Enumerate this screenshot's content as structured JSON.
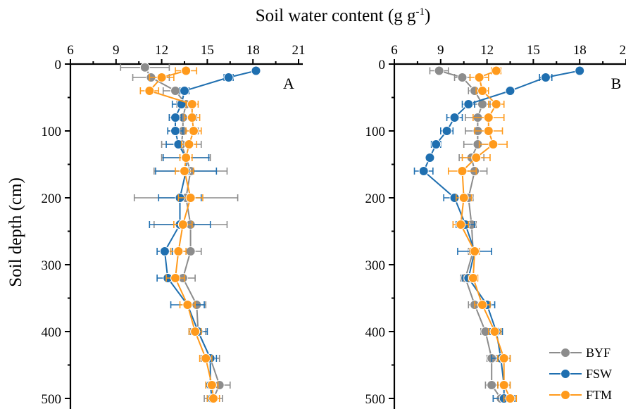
{
  "chart_data": {
    "type": "line",
    "xlabel": "Soil water content (g g",
    "xlabel_superscript": "-1",
    "xlabel_suffix": ")",
    "ylabel": "Soil depth (cm)",
    "x_axis_position": "top",
    "y_reversed": true,
    "legend": {
      "placement": "bottom-right",
      "entries": [
        "BYF",
        "FSW",
        "FTM"
      ]
    },
    "colors": {
      "BYF": "#8c8c8c",
      "FSW": "#1f6fb0",
      "FTM": "#ff9a1c"
    },
    "panels": [
      {
        "label": "A",
        "xlim": [
          6,
          21
        ],
        "xticks": [
          "6",
          "9",
          "12",
          "15",
          "18",
          "21"
        ],
        "ylim": [
          0,
          500
        ],
        "yticks": [
          "0",
          "100",
          "200",
          "300",
          "400",
          "500"
        ],
        "series": [
          {
            "name": "BYF",
            "depth": [
              5,
              20,
              40,
              60,
              80,
              100,
              120,
              140,
              160,
              200,
              240,
              280,
              320,
              360,
              400,
              440,
              480,
              500
            ],
            "values": [
              10.9,
              11.3,
              12.9,
              13.6,
              13.4,
              13.4,
              13.3,
              13.6,
              13.9,
              13.6,
              13.9,
              13.9,
              13.4,
              14.3,
              14.4,
              15.2,
              15.8,
              15.4
            ],
            "errors": [
              1.6,
              1.2,
              0.8,
              0.6,
              0.9,
              1.0,
              1.3,
              1.6,
              2.4,
              3.4,
              2.4,
              0.7,
              0.8,
              0.6,
              0.5,
              0.6,
              0.7,
              0.6
            ]
          },
          {
            "name": "FSW",
            "depth": [
              10,
              20,
              40,
              60,
              80,
              100,
              120,
              140,
              160,
              200,
              240,
              280,
              320,
              360,
              400,
              440,
              480,
              500
            ],
            "values": [
              18.2,
              16.4,
              13.5,
              13.3,
              12.9,
              12.9,
              13.1,
              13.6,
              13.6,
              13.2,
              13.2,
              12.2,
              12.4,
              13.7,
              14.4,
              15.2,
              15.2,
              15.3
            ],
            "errors": [
              0.2,
              0.3,
              0.3,
              0.6,
              0.4,
              0.5,
              0.8,
              1.5,
              2.0,
              1.4,
              2.0,
              0.5,
              0.7,
              1.1,
              0.6,
              0.4,
              0.3,
              0.3
            ]
          },
          {
            "name": "FTM",
            "depth": [
              10,
              20,
              40,
              60,
              80,
              100,
              120,
              140,
              160,
              200,
              240,
              280,
              320,
              360,
              400,
              440,
              480,
              500
            ],
            "values": [
              13.6,
              12.0,
              11.2,
              14.0,
              14.0,
              14.1,
              13.8,
              13.6,
              13.5,
              13.9,
              13.4,
              13.1,
              12.9,
              13.7,
              14.2,
              14.9,
              15.3,
              15.4
            ],
            "errors": [
              0.7,
              0.8,
              0.6,
              0.4,
              0.5,
              0.5,
              0.5,
              0.4,
              0.6,
              0.8,
              0.6,
              0.5,
              0.6,
              0.5,
              0.4,
              0.4,
              0.4,
              0.4
            ]
          }
        ]
      },
      {
        "label": "B",
        "xlim": [
          6,
          21
        ],
        "xticks": [
          "6",
          "9",
          "12",
          "15",
          "18",
          "21"
        ],
        "ylim": [
          0,
          500
        ],
        "yticks": [
          "0",
          "100",
          "200",
          "300",
          "400",
          "500"
        ],
        "series": [
          {
            "name": "BYF",
            "depth": [
              10,
              20,
              40,
              60,
              80,
              100,
              120,
              140,
              160,
              200,
              240,
              280,
              320,
              360,
              400,
              440,
              480,
              500
            ],
            "values": [
              8.9,
              10.4,
              11.2,
              11.7,
              11.4,
              11.4,
              11.4,
              11.0,
              11.2,
              10.8,
              11.0,
              11.1,
              10.6,
              11.2,
              11.9,
              12.3,
              12.3,
              12.9
            ],
            "errors": [
              0.6,
              0.5,
              0.4,
              0.5,
              0.8,
              0.8,
              0.9,
              0.8,
              0.8,
              0.3,
              0.3,
              0.3,
              0.3,
              0.4,
              0.3,
              0.3,
              0.4,
              0.5
            ]
          },
          {
            "name": "FSW",
            "depth": [
              10,
              20,
              40,
              60,
              80,
              100,
              120,
              140,
              160,
              200,
              240,
              280,
              320,
              360,
              400,
              440,
              480,
              500
            ],
            "values": [
              18.0,
              15.8,
              13.5,
              10.8,
              9.9,
              9.4,
              8.7,
              8.3,
              7.9,
              9.9,
              10.6,
              11.2,
              10.8,
              12.0,
              12.6,
              12.9,
              13.1,
              13.1
            ],
            "errors": [
              0.2,
              0.4,
              0.2,
              0.4,
              0.5,
              0.4,
              0.3,
              0.2,
              0.6,
              0.7,
              0.6,
              1.1,
              0.4,
              0.5,
              0.4,
              0.6,
              0.4,
              0.7
            ]
          },
          {
            "name": "FTM",
            "depth": [
              10,
              20,
              40,
              60,
              80,
              100,
              120,
              140,
              160,
              200,
              240,
              280,
              320,
              360,
              400,
              440,
              480,
              500
            ],
            "values": [
              12.6,
              11.5,
              11.7,
              12.6,
              12.1,
              12.1,
              12.4,
              11.3,
              10.4,
              10.5,
              10.3,
              11.2,
              11.1,
              11.7,
              12.5,
              13.1,
              13.1,
              13.5
            ],
            "errors": [
              0.3,
              0.6,
              0.4,
              0.5,
              1.0,
              0.9,
              0.9,
              0.9,
              0.9,
              0.5,
              0.5,
              0.3,
              0.3,
              0.5,
              0.4,
              0.4,
              0.4,
              0.4
            ]
          }
        ]
      }
    ]
  }
}
